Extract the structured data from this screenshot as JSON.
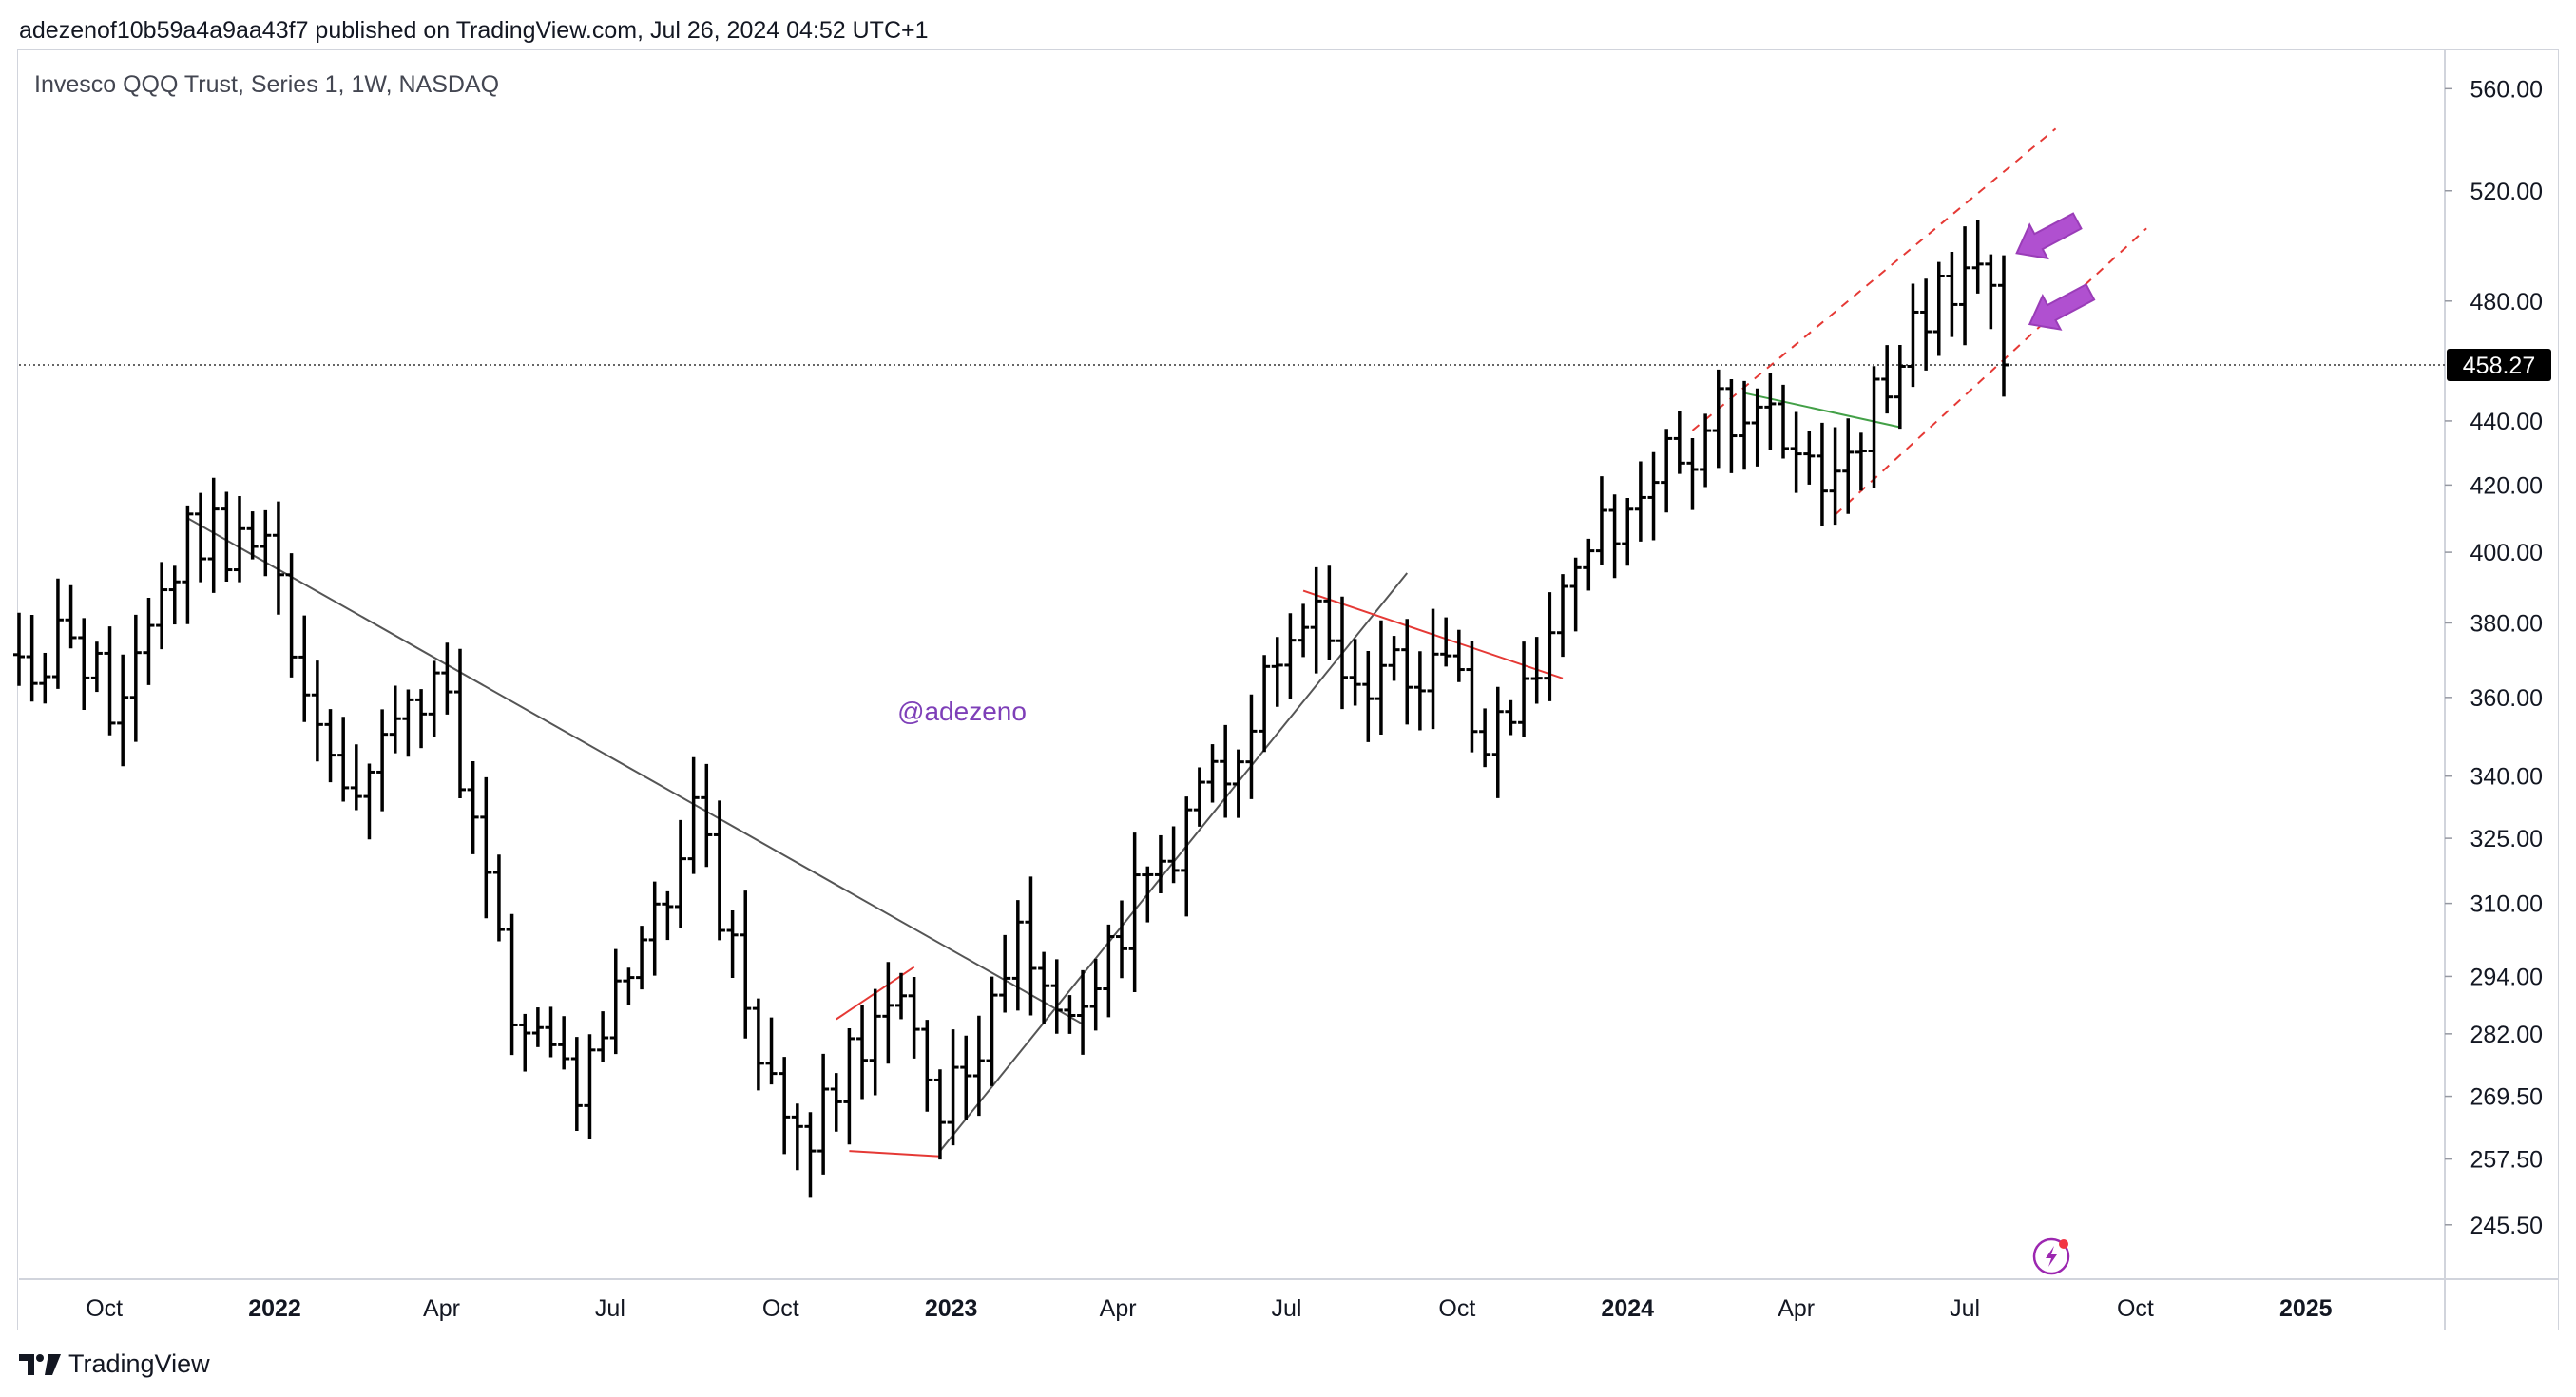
{
  "header": {
    "publisher_line": "adezenof10b59a4a9aa43f7 published on TradingView.com, Jul 26, 2024 04:52 UTC+1"
  },
  "symbol": {
    "label": "Invesco QQQ Trust, Series 1, 1W, NASDAQ"
  },
  "watermark": {
    "text": "@adezeno",
    "color": "#7e3fb8"
  },
  "footer": {
    "brand": "TradingView"
  },
  "colors": {
    "bars": "#000000",
    "trendline": "#555555",
    "red_line": "#e53935",
    "green_line": "#43a047",
    "arrow": "#b050d0",
    "price_tag_bg": "#000000",
    "price_tag_text": "#ffffff",
    "axis_text": "#131722",
    "grid_border": "#d1d4dc"
  },
  "icons": {
    "flash": "lightning-bolt-icon",
    "logo": "tradingview-logo-icon"
  },
  "chart_data": {
    "type": "ohlc",
    "title": "",
    "ylabel": "",
    "xlabel": "",
    "y_scale": "log",
    "ylim": [
      236,
      575
    ],
    "grid": false,
    "current_price": "458.27",
    "y_ticks": [
      "560.00",
      "520.00",
      "480.00",
      "440.00",
      "420.00",
      "400.00",
      "380.00",
      "360.00",
      "340.00",
      "325.00",
      "310.00",
      "294.00",
      "282.00",
      "269.50",
      "257.50",
      "245.50"
    ],
    "x_ticks": [
      {
        "label": "Oct",
        "date": "2021-10-01",
        "bold": false
      },
      {
        "label": "2022",
        "date": "2022-01-01",
        "bold": true
      },
      {
        "label": "Apr",
        "date": "2022-04-01",
        "bold": false
      },
      {
        "label": "Jul",
        "date": "2022-07-01",
        "bold": false
      },
      {
        "label": "Oct",
        "date": "2022-10-01",
        "bold": false
      },
      {
        "label": "2023",
        "date": "2023-01-01",
        "bold": true
      },
      {
        "label": "Apr",
        "date": "2023-04-01",
        "bold": false
      },
      {
        "label": "Jul",
        "date": "2023-07-01",
        "bold": false
      },
      {
        "label": "Oct",
        "date": "2023-10-01",
        "bold": false
      },
      {
        "label": "2024",
        "date": "2024-01-01",
        "bold": true
      },
      {
        "label": "Apr",
        "date": "2024-04-01",
        "bold": false
      },
      {
        "label": "Jul",
        "date": "2024-07-01",
        "bold": false
      },
      {
        "label": "Oct",
        "date": "2024-10-01",
        "bold": false
      },
      {
        "label": "2025",
        "date": "2025-01-01",
        "bold": true
      }
    ],
    "x_range": [
      "2021-08-16",
      "2025-03-17"
    ],
    "keypoints": [
      {
        "date": "2021-08-16",
        "close": 367
      },
      {
        "date": "2021-09-06",
        "close": 376
      },
      {
        "date": "2021-10-04",
        "close": 360
      },
      {
        "date": "2021-11-19",
        "close": 407
      },
      {
        "date": "2021-12-27",
        "close": 400
      },
      {
        "date": "2022-01-24",
        "close": 348
      },
      {
        "date": "2022-02-14",
        "close": 332
      },
      {
        "date": "2022-03-28",
        "close": 368
      },
      {
        "date": "2022-05-09",
        "close": 290
      },
      {
        "date": "2022-06-13",
        "close": 272
      },
      {
        "date": "2022-08-15",
        "close": 330
      },
      {
        "date": "2022-09-26",
        "close": 270
      },
      {
        "date": "2022-10-10",
        "close": 260
      },
      {
        "date": "2022-11-28",
        "close": 292
      },
      {
        "date": "2022-12-26",
        "close": 265
      },
      {
        "date": "2023-02-06",
        "close": 302
      },
      {
        "date": "2023-03-06",
        "close": 290
      },
      {
        "date": "2023-05-01",
        "close": 322
      },
      {
        "date": "2023-07-17",
        "close": 385
      },
      {
        "date": "2023-08-14",
        "close": 362
      },
      {
        "date": "2023-09-11",
        "close": 370
      },
      {
        "date": "2023-10-23",
        "close": 350
      },
      {
        "date": "2023-11-20",
        "close": 380
      },
      {
        "date": "2023-12-25",
        "close": 410
      },
      {
        "date": "2024-02-12",
        "close": 438
      },
      {
        "date": "2024-03-04",
        "close": 446
      },
      {
        "date": "2024-04-22",
        "close": 418
      },
      {
        "date": "2024-05-20",
        "close": 455
      },
      {
        "date": "2024-07-08",
        "close": 497
      },
      {
        "date": "2024-07-15",
        "close": 475
      },
      {
        "date": "2024-07-22",
        "close": 458.27
      }
    ],
    "trendlines": [
      {
        "name": "downtrend",
        "color": "#555555",
        "dashed": false,
        "from": {
          "date": "2021-11-15",
          "price": 410
        },
        "to": {
          "date": "2023-03-13",
          "price": 284
        }
      },
      {
        "name": "uptrend",
        "color": "#555555",
        "dashed": false,
        "from": {
          "date": "2022-12-26",
          "price": 259
        },
        "to": {
          "date": "2023-09-04",
          "price": 394
        }
      },
      {
        "name": "red-top-2022",
        "color": "#e53935",
        "dashed": false,
        "from": {
          "date": "2022-10-31",
          "price": 285
        },
        "to": {
          "date": "2022-12-12",
          "price": 296
        }
      },
      {
        "name": "red-bottom-2022",
        "color": "#e53935",
        "dashed": false,
        "from": {
          "date": "2022-11-07",
          "price": 259
        },
        "to": {
          "date": "2022-12-26",
          "price": 258
        }
      },
      {
        "name": "red-resistance-2023",
        "color": "#e53935",
        "dashed": false,
        "from": {
          "date": "2023-07-10",
          "price": 389
        },
        "to": {
          "date": "2023-11-27",
          "price": 365
        }
      },
      {
        "name": "green-2024",
        "color": "#43a047",
        "dashed": false,
        "from": {
          "date": "2024-03-04",
          "price": 449
        },
        "to": {
          "date": "2024-05-27",
          "price": 438
        }
      },
      {
        "name": "channel-top",
        "color": "#e53935",
        "dashed": true,
        "from": {
          "date": "2024-02-05",
          "price": 437
        },
        "to": {
          "date": "2024-08-19",
          "price": 544
        }
      },
      {
        "name": "channel-bottom",
        "color": "#e53935",
        "dashed": true,
        "from": {
          "date": "2024-04-22",
          "price": 411
        },
        "to": {
          "date": "2024-10-07",
          "price": 506
        }
      }
    ],
    "arrows": [
      {
        "date": "2024-07-29",
        "price": 497
      },
      {
        "date": "2024-08-05",
        "price": 472
      }
    ]
  }
}
